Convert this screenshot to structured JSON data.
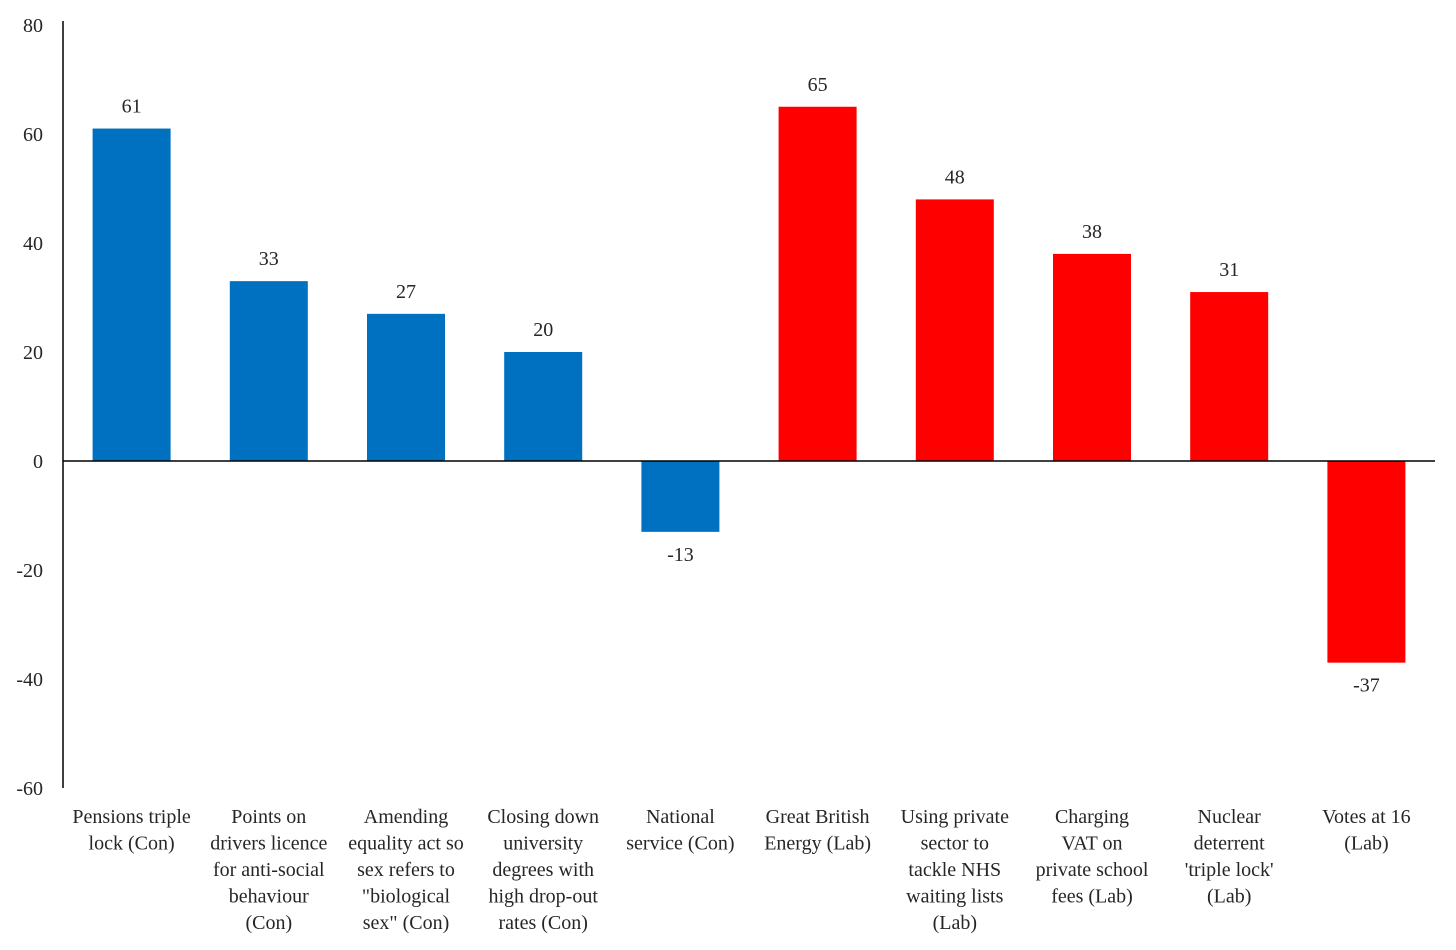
{
  "chart_data": {
    "type": "bar",
    "title": "",
    "xlabel": "",
    "ylabel": "",
    "ylim": [
      -60,
      80
    ],
    "yticks": [
      "80",
      "60",
      "40",
      "20",
      "0",
      "-20",
      "-40",
      "-60"
    ],
    "ytick_values": [
      80,
      60,
      40,
      20,
      0,
      -20,
      -40,
      -60
    ],
    "grid": false,
    "legend": "none",
    "colors": {
      "Con": "#0070c0",
      "Lab": "#ff0000",
      "axis": "#000000",
      "text": "#262626"
    },
    "categories": [
      [
        "Pensions triple",
        "lock  (Con)"
      ],
      [
        "Points on",
        "drivers licence",
        "for anti-social",
        "behaviour",
        "(Con)"
      ],
      [
        "Amending",
        "equality act so",
        "sex refers to",
        "\"biological",
        "sex\" (Con)"
      ],
      [
        "Closing down",
        "university",
        "degrees with",
        "high drop-out",
        "rates (Con)"
      ],
      [
        "National",
        "service (Con)"
      ],
      [
        "Great British",
        "Energy (Lab)"
      ],
      [
        "Using private",
        "sector to",
        "tackle NHS",
        "waiting lists",
        "(Lab)"
      ],
      [
        "Charging",
        "VAT on",
        "private school",
        "fees (Lab)"
      ],
      [
        "Nuclear",
        "deterrent",
        "'triple lock'",
        "(Lab)"
      ],
      [
        "Votes at 16",
        "(Lab)"
      ]
    ],
    "values": [
      61,
      33,
      27,
      20,
      -13,
      65,
      48,
      38,
      31,
      -37
    ],
    "data_labels": [
      "61",
      "33",
      "27",
      "20",
      "-13",
      "65",
      "48",
      "38",
      "31",
      "-37"
    ],
    "party": [
      "Con",
      "Con",
      "Con",
      "Con",
      "Con",
      "Lab",
      "Lab",
      "Lab",
      "Lab",
      "Lab"
    ]
  }
}
